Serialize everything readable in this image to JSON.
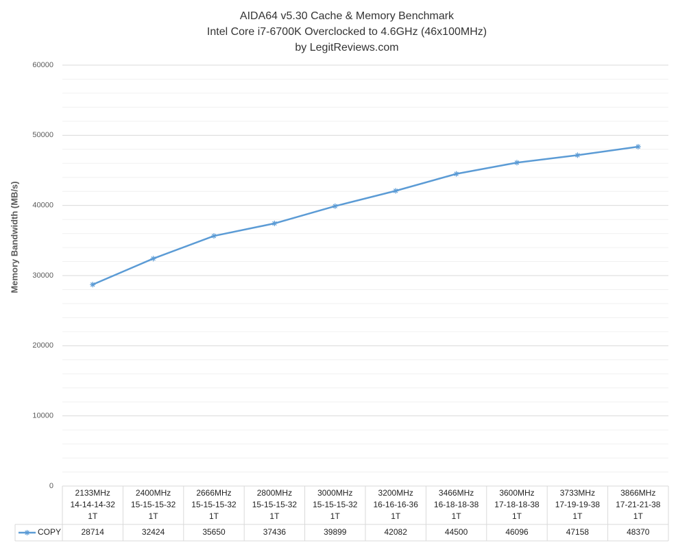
{
  "chart_data": {
    "type": "line",
    "title": "AIDA64 v5.30 Cache & Memory Benchmark",
    "subtitle": "Intel Core i7-6700K Overclocked to 4.6GHz (46x100MHz)",
    "credit": "by LegitReviews.com",
    "y_label": "Memory Bandwidth (MB/s)",
    "categories": [
      [
        "2133MHz",
        "14-14-14-32",
        "1T"
      ],
      [
        "2400MHz",
        "15-15-15-32",
        "1T"
      ],
      [
        "2666MHz",
        "15-15-15-32",
        "1T"
      ],
      [
        "2800MHz",
        "15-15-15-32",
        "1T"
      ],
      [
        "3000MHz",
        "15-15-15-32",
        "1T"
      ],
      [
        "3200MHz",
        "16-16-16-36",
        "1T"
      ],
      [
        "3466MHz",
        "16-18-18-38",
        "1T"
      ],
      [
        "3600MHz",
        "17-18-18-38",
        "1T"
      ],
      [
        "3733MHz",
        "17-19-19-38",
        "1T"
      ],
      [
        "3866MHz",
        "17-21-21-38",
        "1T"
      ]
    ],
    "series": [
      {
        "name": "COPY",
        "color": "#5b9bd5",
        "values": [
          28714,
          32424,
          35650,
          37436,
          39899,
          42082,
          44500,
          46096,
          47158,
          48370
        ]
      }
    ],
    "ylim": [
      0,
      60000
    ],
    "yticks": [
      0,
      10000,
      20000,
      30000,
      40000,
      50000,
      60000
    ],
    "minor_yticks": [
      2000,
      4000,
      6000,
      8000,
      12000,
      14000,
      16000,
      18000,
      22000,
      24000,
      26000,
      28000,
      32000,
      34000,
      36000,
      38000,
      42000,
      44000,
      46000,
      48000,
      52000,
      54000,
      56000,
      58000
    ],
    "grid": true,
    "data_table": true
  }
}
